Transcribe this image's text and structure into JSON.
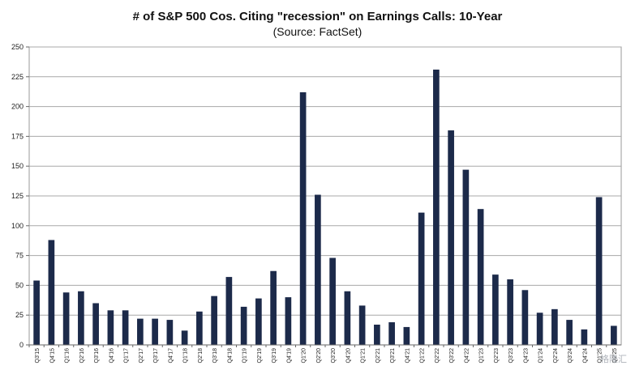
{
  "chart_data": {
    "type": "bar",
    "title": "# of S&P 500 Cos. Citing \"recession\" on Earnings Calls: 10-Year",
    "subtitle": "(Source: FactSet)",
    "xlabel": "",
    "ylabel": "",
    "ylim": [
      0,
      250
    ],
    "yticks": [
      0,
      25,
      50,
      75,
      100,
      125,
      150,
      175,
      200,
      225,
      250
    ],
    "grid": true,
    "bar_color": "#1c2a4a",
    "categories": [
      "Q3'15",
      "Q4'15",
      "Q1'16",
      "Q2'16",
      "Q3'16",
      "Q4'16",
      "Q1'17",
      "Q2'17",
      "Q3'17",
      "Q4'17",
      "Q1'18",
      "Q2'18",
      "Q3'18",
      "Q4'18",
      "Q1'19",
      "Q2'19",
      "Q3'19",
      "Q4'19",
      "Q1'20",
      "Q2'20",
      "Q3'20",
      "Q4'20",
      "Q1'21",
      "Q2'21",
      "Q3'21",
      "Q4'21",
      "Q1'22",
      "Q2'22",
      "Q3'22",
      "Q4'22",
      "Q1'23",
      "Q2'23",
      "Q3'23",
      "Q4'23",
      "Q1'24",
      "Q2'24",
      "Q3'24",
      "Q4'24",
      "Q1'25",
      "Q2'25"
    ],
    "values": [
      54,
      88,
      44,
      45,
      35,
      29,
      29,
      22,
      22,
      21,
      12,
      28,
      41,
      57,
      32,
      39,
      62,
      40,
      212,
      126,
      73,
      45,
      33,
      17,
      19,
      15,
      111,
      231,
      180,
      147,
      114,
      59,
      55,
      46,
      27,
      30,
      21,
      13,
      124,
      16
    ]
  },
  "watermark": "格隆汇"
}
